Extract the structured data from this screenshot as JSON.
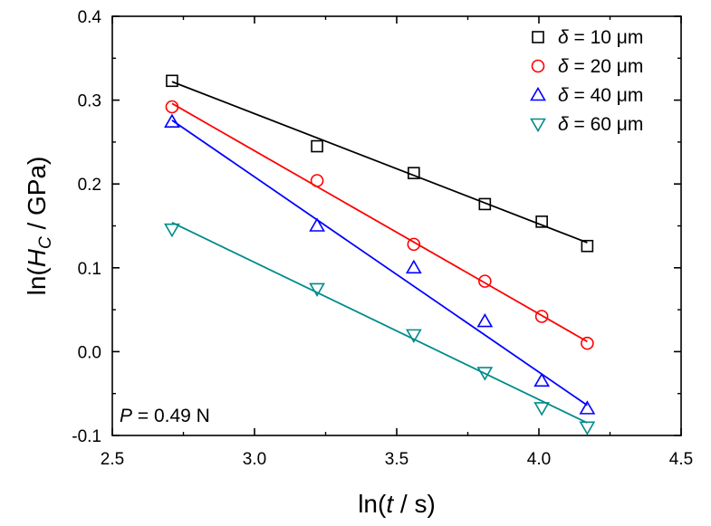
{
  "chart_data": {
    "type": "scatter",
    "xlabel": {
      "prefix": "ln(",
      "var": "t",
      "suffix": " / s)"
    },
    "ylabel": {
      "prefix": "ln(",
      "var": "H",
      "sub": "C",
      "suffix": " / GPa)"
    },
    "xlim": [
      2.5,
      4.5
    ],
    "ylim": [
      -0.1,
      0.4
    ],
    "x_ticks": [
      "2.5",
      "3.0",
      "3.5",
      "4.0",
      "4.5"
    ],
    "y_ticks": [
      "-0.1",
      "0.0",
      "0.1",
      "0.2",
      "0.3",
      "0.4"
    ],
    "grid": false,
    "legend_position": "top-right",
    "annotation": {
      "var": "P",
      "text": " = 0.49 N"
    },
    "series": [
      {
        "name": "δ = 10 μm",
        "legend": {
          "var": "δ",
          "text": " = 10 μm"
        },
        "marker": "square",
        "color": "#000000",
        "x": [
          2.71,
          3.22,
          3.56,
          3.81,
          4.01,
          4.17
        ],
        "y": [
          0.323,
          0.245,
          0.213,
          0.176,
          0.155,
          0.126
        ],
        "fit": {
          "x": [
            2.71,
            4.17
          ],
          "y": [
            0.322,
            0.13
          ]
        }
      },
      {
        "name": "δ = 20 μm",
        "legend": {
          "var": "δ",
          "text": " = 20 μm"
        },
        "marker": "circle",
        "color": "#ff0000",
        "x": [
          2.71,
          3.22,
          3.56,
          3.81,
          4.01,
          4.17
        ],
        "y": [
          0.292,
          0.204,
          0.128,
          0.084,
          0.042,
          0.01
        ],
        "fit": {
          "x": [
            2.71,
            4.17
          ],
          "y": [
            0.296,
            0.012
          ]
        }
      },
      {
        "name": "δ = 40 μm",
        "legend": {
          "var": "δ",
          "text": " = 40 μm"
        },
        "marker": "triangle-up",
        "color": "#0000ff",
        "x": [
          2.71,
          3.22,
          3.56,
          3.81,
          4.01,
          4.17
        ],
        "y": [
          0.274,
          0.15,
          0.1,
          0.036,
          -0.035,
          -0.068
        ],
        "fit": {
          "x": [
            2.71,
            4.17
          ],
          "y": [
            0.276,
            -0.064
          ]
        }
      },
      {
        "name": "δ = 60 μm",
        "legend": {
          "var": "δ",
          "text": " = 60 μm"
        },
        "marker": "triangle-down",
        "color": "#008b8b",
        "x": [
          2.71,
          3.22,
          3.56,
          3.81,
          4.01,
          4.17
        ],
        "y": [
          0.146,
          0.075,
          0.02,
          -0.025,
          -0.067,
          -0.09
        ],
        "fit": {
          "x": [
            2.71,
            4.17
          ],
          "y": [
            0.154,
            -0.085
          ]
        }
      }
    ]
  }
}
